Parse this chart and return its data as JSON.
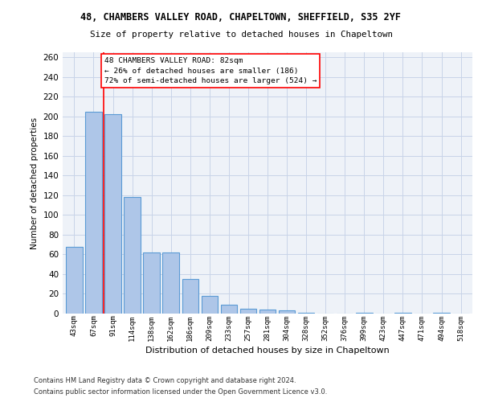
{
  "title1": "48, CHAMBERS VALLEY ROAD, CHAPELTOWN, SHEFFIELD, S35 2YF",
  "title2": "Size of property relative to detached houses in Chapeltown",
  "xlabel": "Distribution of detached houses by size in Chapeltown",
  "ylabel": "Number of detached properties",
  "categories": [
    "43sqm",
    "67sqm",
    "91sqm",
    "114sqm",
    "138sqm",
    "162sqm",
    "186sqm",
    "209sqm",
    "233sqm",
    "257sqm",
    "281sqm",
    "304sqm",
    "328sqm",
    "352sqm",
    "376sqm",
    "399sqm",
    "423sqm",
    "447sqm",
    "471sqm",
    "494sqm",
    "518sqm"
  ],
  "values": [
    68,
    205,
    202,
    118,
    62,
    62,
    35,
    18,
    9,
    5,
    4,
    3,
    1,
    0,
    0,
    1,
    0,
    1,
    0,
    1,
    0
  ],
  "bar_color": "#aec6e8",
  "bar_edge_color": "#5b9bd5",
  "grid_color": "#c8d4e8",
  "background_color": "#eef2f8",
  "annotation_text": "48 CHAMBERS VALLEY ROAD: 82sqm\n← 26% of detached houses are smaller (186)\n72% of semi-detached houses are larger (524) →",
  "footnote1": "Contains HM Land Registry data © Crown copyright and database right 2024.",
  "footnote2": "Contains public sector information licensed under the Open Government Licence v3.0.",
  "ylim": [
    0,
    265
  ],
  "yticks": [
    0,
    20,
    40,
    60,
    80,
    100,
    120,
    140,
    160,
    180,
    200,
    220,
    240,
    260
  ],
  "red_line_x": 1.5,
  "fig_width": 6.0,
  "fig_height": 5.0,
  "dpi": 100
}
